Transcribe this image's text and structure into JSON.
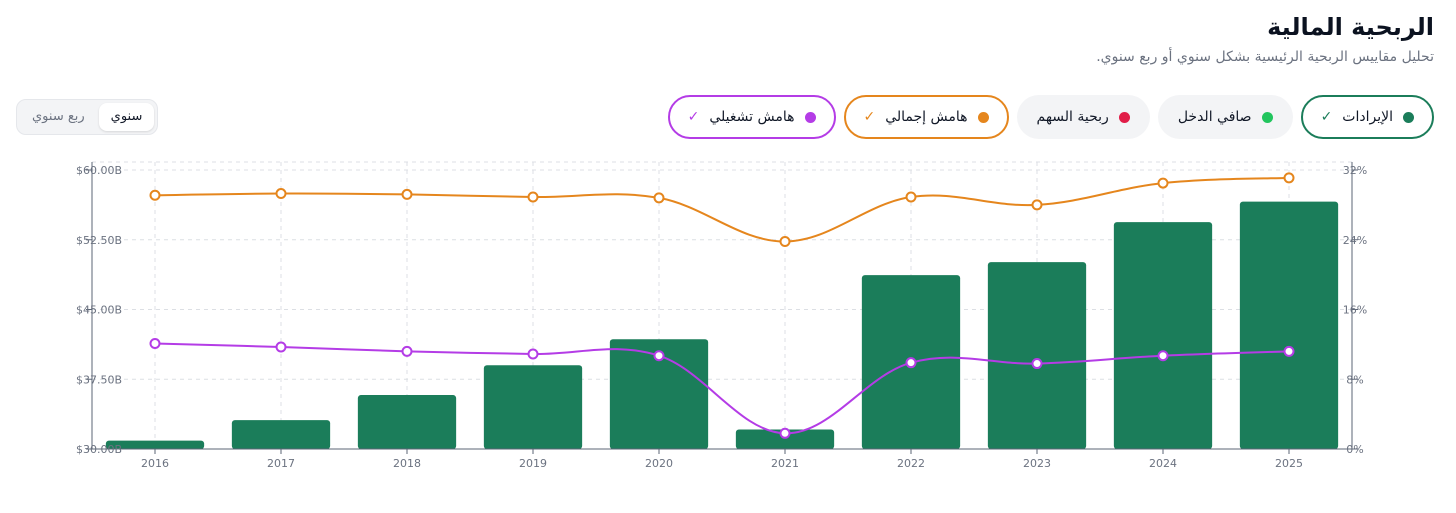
{
  "header": {
    "title": "الربحية المالية",
    "subtitle": "تحليل مقاييس الربحية الرئيسية بشكل سنوي أو ربع سنوي."
  },
  "toggle": {
    "options": [
      {
        "label": "سنوي",
        "selected": true
      },
      {
        "label": "ربع سنوي",
        "selected": false
      }
    ]
  },
  "legend": {
    "items": [
      {
        "label": "الإيرادات",
        "color": "#1b7d5a",
        "active": true
      },
      {
        "label": "صافي الدخل",
        "color": "#22c55e",
        "active": false
      },
      {
        "label": "ربحية السهم",
        "color": "#e11d48",
        "active": false
      },
      {
        "label": "هامش إجمالي",
        "color": "#e5861d",
        "active": true
      },
      {
        "label": "هامش تشغيلي",
        "color": "#b43ce6",
        "active": true
      }
    ]
  },
  "chart_data": {
    "type": "bar",
    "categories": [
      "2016",
      "2017",
      "2018",
      "2019",
      "2020",
      "2021",
      "2022",
      "2023",
      "2024",
      "2025"
    ],
    "y_left": {
      "ticks": [
        "$30.00B",
        "$37.50B",
        "$45.00B",
        "$52.50B",
        "$60.00B"
      ],
      "range": [
        30,
        60
      ]
    },
    "y_right": {
      "ticks": [
        "0%",
        "8%",
        "16%",
        "24%",
        "32%"
      ],
      "range": [
        0,
        32
      ]
    },
    "grid": true,
    "series": [
      {
        "name": "الإيرادات",
        "kind": "bar",
        "axis": "left",
        "color": "#1b7d5a",
        "values": [
          30.9,
          33.1,
          35.8,
          39.0,
          41.8,
          32.1,
          48.7,
          50.1,
          54.4,
          56.6
        ]
      },
      {
        "name": "هامش إجمالي",
        "kind": "line",
        "axis": "right",
        "color": "#e5861d",
        "values": [
          29.1,
          29.3,
          29.2,
          28.9,
          28.8,
          23.8,
          28.9,
          28.0,
          30.5,
          31.1
        ]
      },
      {
        "name": "هامش تشغيلي",
        "kind": "line",
        "axis": "right",
        "color": "#b43ce6",
        "values": [
          12.1,
          11.7,
          11.2,
          10.9,
          10.7,
          1.8,
          9.9,
          9.8,
          10.7,
          11.2
        ]
      }
    ]
  }
}
